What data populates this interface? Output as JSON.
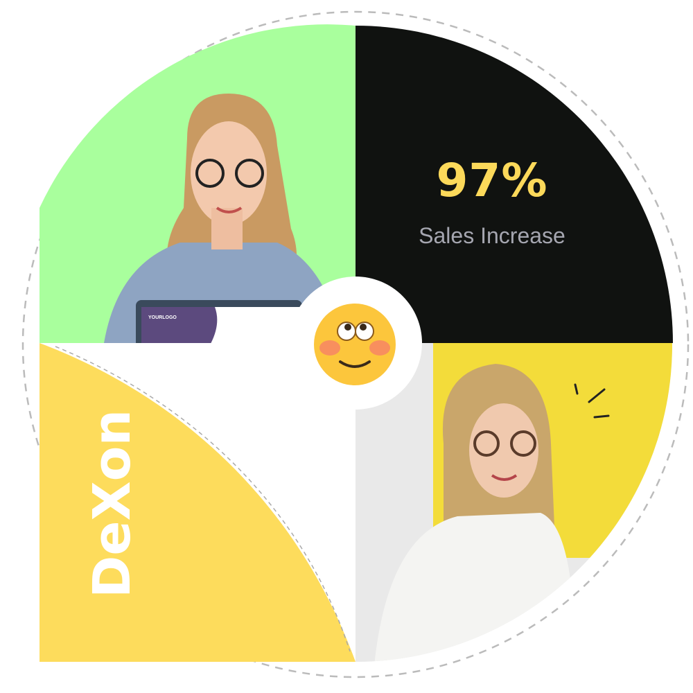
{
  "stat": {
    "value": "97%",
    "label": "Sales Increase"
  },
  "brand": {
    "name": "DeXon"
  },
  "laptop": {
    "logo_text": "YOURLOGO"
  },
  "colors": {
    "green": "#a9ff9d",
    "black": "#101210",
    "yellow": "#fddc5c",
    "stat_value": "#fcd95a",
    "stat_label": "#a5a6b0",
    "dashed_ring": "#bbbbbb"
  },
  "icons": {
    "center_emoji": "flushed-smiling-face-emoji"
  }
}
